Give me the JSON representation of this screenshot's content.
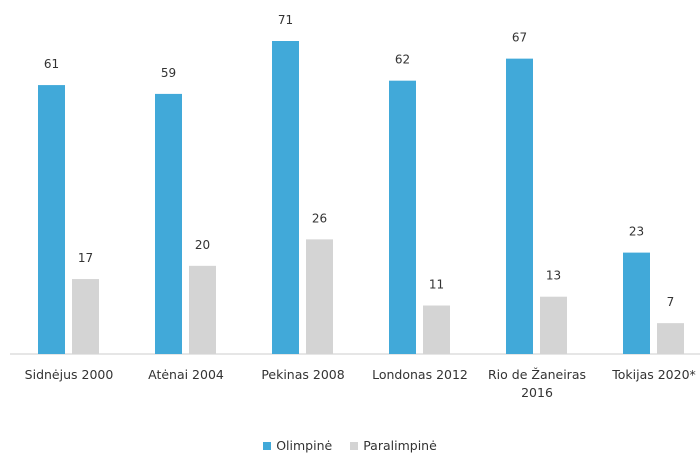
{
  "chart_data": {
    "type": "bar",
    "categories": [
      "Sidnėjus 2000",
      "Atėnai 2004",
      "Pekinas 2008",
      "Londonas 2012",
      "Rio de Žaneiras 2016",
      "Tokijas 2020*"
    ],
    "series": [
      {
        "name": "Olimpinė",
        "color": "#41a9d9",
        "values": [
          61,
          59,
          71,
          62,
          67,
          23
        ]
      },
      {
        "name": "Paralimpinė",
        "color": "#d4d4d4",
        "values": [
          17,
          20,
          26,
          11,
          13,
          7
        ]
      }
    ],
    "legend": "bottom"
  }
}
